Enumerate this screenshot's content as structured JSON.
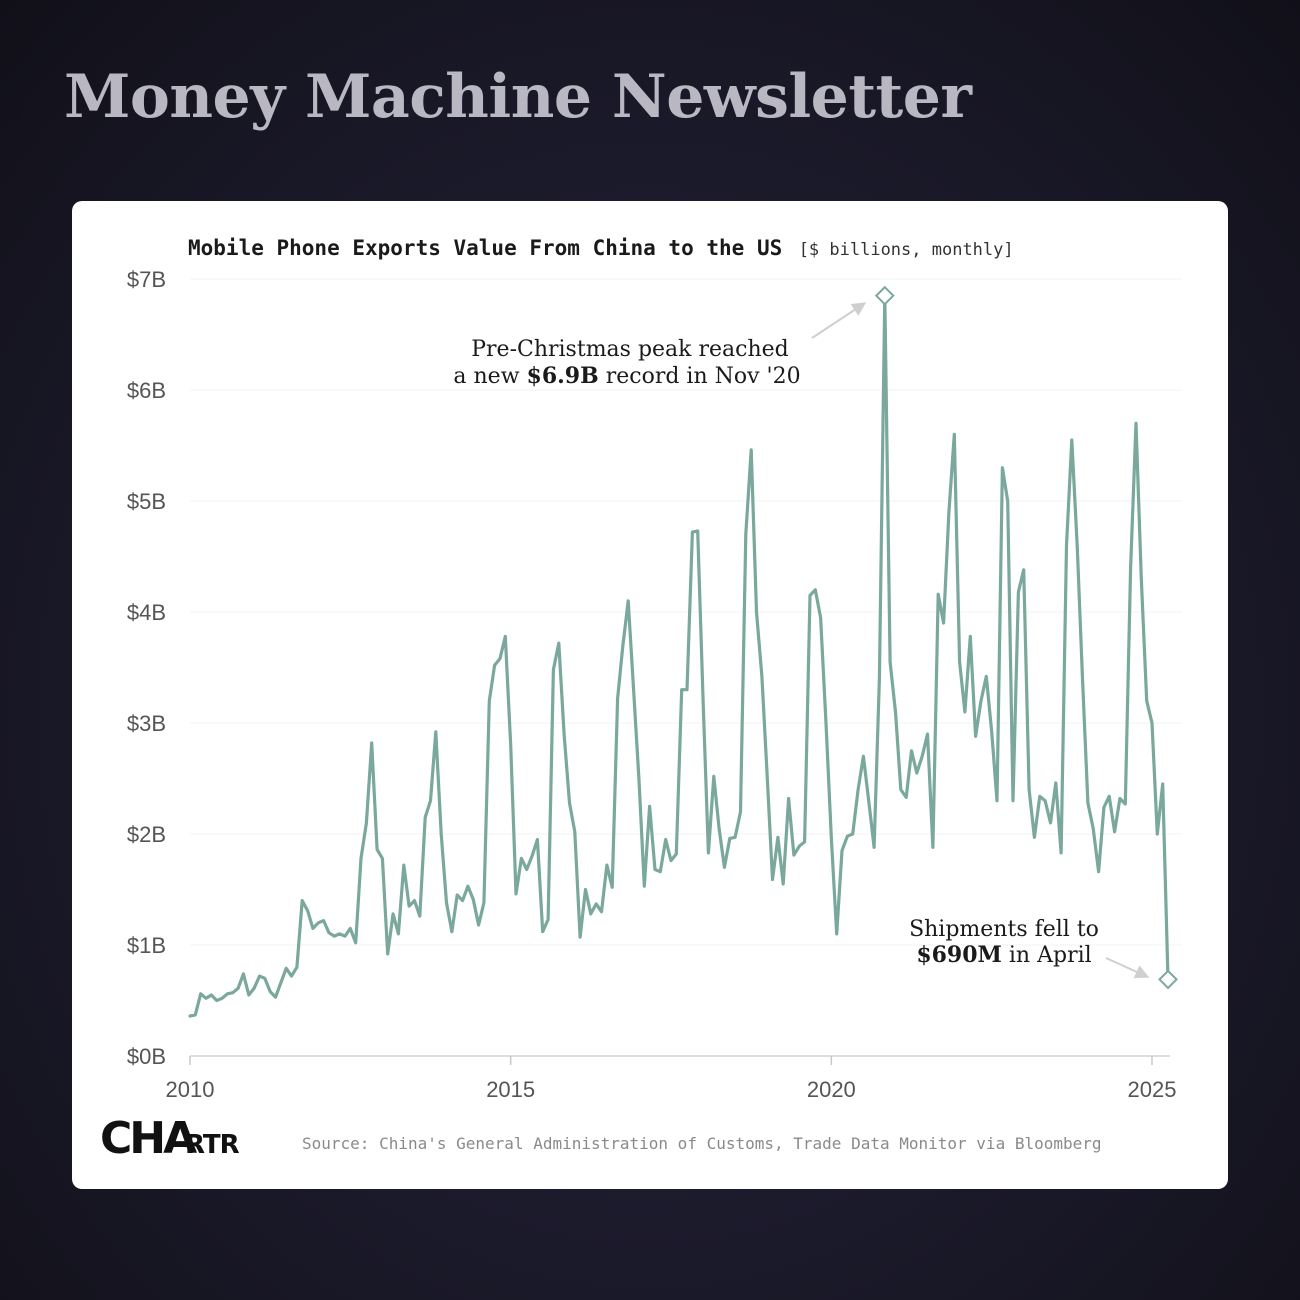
{
  "newsletter": {
    "name": "Money Machine Newsletter"
  },
  "brand": {
    "logo_text": "CHARTR",
    "logo_big": "CHA",
    "logo_small": "RTR",
    "accent": "#7aa89c"
  },
  "chart_data": {
    "type": "line",
    "title": "Mobile Phone Exports Value From China to the US",
    "unit_note": "[$ billions, monthly]",
    "ylim": [
      0,
      7
    ],
    "yticks": [
      0,
      1,
      2,
      3,
      4,
      5,
      6,
      7
    ],
    "ytick_labels": [
      "$0B",
      "$1B",
      "$2B",
      "$3B",
      "$4B",
      "$5B",
      "$6B",
      "$7B"
    ],
    "xticks": [
      2010,
      2015,
      2020,
      2025
    ],
    "xtick_labels": [
      "2010",
      "2015",
      "2020",
      "2025"
    ],
    "grid": true,
    "series": [
      {
        "start": "2010-01",
        "frequency": "monthly",
        "values": [
          0.36,
          0.37,
          0.56,
          0.52,
          0.55,
          0.5,
          0.52,
          0.56,
          0.57,
          0.61,
          0.74,
          0.55,
          0.61,
          0.72,
          0.7,
          0.58,
          0.53,
          0.66,
          0.79,
          0.72,
          0.8,
          1.4,
          1.31,
          1.15,
          1.2,
          1.22,
          1.11,
          1.08,
          1.1,
          1.08,
          1.15,
          1.02,
          1.78,
          2.1,
          2.82,
          1.86,
          1.78,
          0.92,
          1.28,
          1.1,
          1.72,
          1.35,
          1.4,
          1.26,
          2.15,
          2.3,
          2.92,
          2.0,
          1.38,
          1.12,
          1.45,
          1.4,
          1.53,
          1.41,
          1.18,
          1.38,
          3.2,
          3.52,
          3.58,
          3.78,
          2.8,
          1.46,
          1.78,
          1.68,
          1.8,
          1.95,
          1.12,
          1.23,
          3.48,
          3.72,
          2.9,
          2.28,
          2.02,
          1.07,
          1.5,
          1.28,
          1.37,
          1.3,
          1.72,
          1.52,
          3.22,
          3.7,
          4.1,
          3.3,
          2.5,
          1.53,
          2.25,
          1.68,
          1.66,
          1.95,
          1.76,
          1.82,
          3.3,
          3.3,
          4.72,
          4.73,
          3.2,
          1.83,
          2.52,
          2.05,
          1.7,
          1.96,
          1.97,
          2.2,
          4.7,
          5.46,
          4.0,
          3.42,
          2.52,
          1.59,
          1.97,
          1.55,
          2.32,
          1.81,
          1.89,
          1.93,
          4.15,
          4.2,
          3.95,
          3.0,
          1.97,
          1.1,
          1.85,
          1.98,
          2.0,
          2.4,
          2.7,
          2.3,
          1.88,
          3.4,
          6.85,
          3.55,
          3.1,
          2.4,
          2.33,
          2.75,
          2.55,
          2.7,
          2.9,
          1.88,
          4.16,
          3.9,
          4.9,
          5.6,
          3.55,
          3.1,
          3.78,
          2.88,
          3.2,
          3.42,
          2.92,
          2.3,
          5.3,
          5.0,
          2.3,
          4.18,
          4.38,
          2.4,
          1.97,
          2.34,
          2.3,
          2.1,
          2.46,
          1.83,
          4.6,
          5.55,
          4.6,
          3.4,
          2.28,
          2.05,
          1.66,
          2.24,
          2.34,
          2.02,
          2.32,
          2.27,
          4.4,
          5.7,
          4.3,
          3.2,
          3.0,
          2.0,
          2.45,
          0.69
        ]
      }
    ],
    "annotations": [
      {
        "target": "2020-11",
        "value": 6.85,
        "line1": "Pre-Christmas peak reached",
        "line2_pre": "a new ",
        "line2_bold": "$6.9B",
        "line2_post": " record in Nov '20"
      },
      {
        "target": "2025-04",
        "value": 0.69,
        "line1": "Shipments fell to",
        "line2_bold": "$690M",
        "line2_post": " in April"
      }
    ],
    "source": "Source: China's General Administration of Customs, Trade Data Monitor via Bloomberg"
  }
}
